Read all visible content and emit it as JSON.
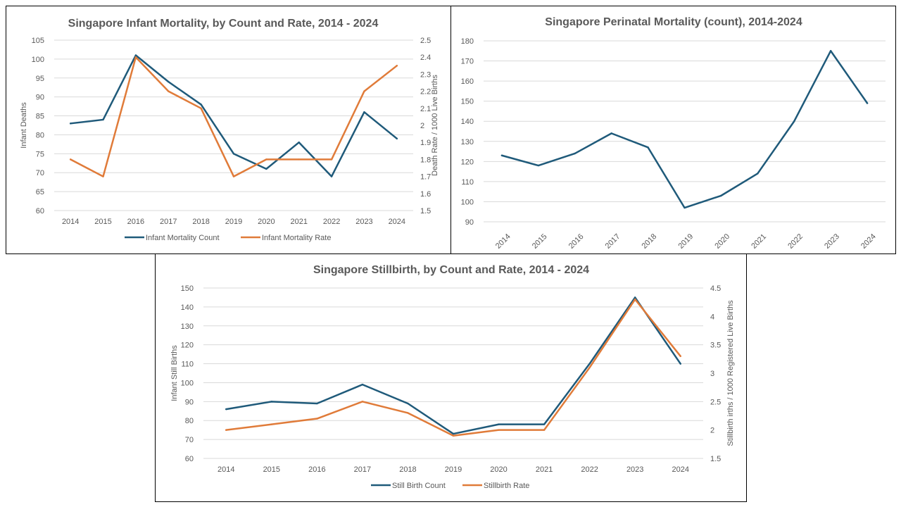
{
  "colors": {
    "count": "#1f5a7a",
    "rate": "#e07b39",
    "grid": "#d9d9d9",
    "text": "#595959"
  },
  "chart_data": [
    {
      "id": "infant",
      "type": "line",
      "title": "Singapore Infant Mortality, by Count and Rate, 2014 - 2024",
      "categories": [
        "2014",
        "2015",
        "2016",
        "2017",
        "2018",
        "2019",
        "2020",
        "2021",
        "2022",
        "2023",
        "2024"
      ],
      "ylabel": "Infant Deaths",
      "y2label": "Death Rate / 1000 Live Births",
      "ylim": [
        60,
        105
      ],
      "yticks": [
        60,
        65,
        70,
        75,
        80,
        85,
        90,
        95,
        100,
        105
      ],
      "y2lim": [
        1.5,
        2.5
      ],
      "y2ticks": [
        "1.5",
        "1.6",
        "1.7",
        "1.8",
        "1.9",
        "2",
        "2.1",
        "2.2",
        "2.3",
        "2.4",
        "2.5"
      ],
      "series": [
        {
          "name": "Infant Mortality Count",
          "axis": "left",
          "color": "#1f5a7a",
          "values": [
            83,
            84,
            101,
            94,
            88,
            75,
            71,
            78,
            69,
            86,
            79
          ]
        },
        {
          "name": "Infant Mortality Rate",
          "axis": "right",
          "color": "#e07b39",
          "values": [
            1.8,
            1.7,
            2.4,
            2.2,
            2.1,
            1.7,
            1.8,
            1.8,
            1.8,
            2.2,
            2.35
          ]
        }
      ],
      "grid": true,
      "legend": "bottom"
    },
    {
      "id": "perinatal",
      "type": "line",
      "title": "Singapore Perinatal Mortality (count), 2014-2024",
      "categories": [
        "2014",
        "2015",
        "2016",
        "2017",
        "2018",
        "2019",
        "2020",
        "2021",
        "2022",
        "2023",
        "2024"
      ],
      "ylim": [
        90,
        180
      ],
      "yticks": [
        90,
        100,
        110,
        120,
        130,
        140,
        150,
        160,
        170,
        180
      ],
      "series": [
        {
          "axis": "left",
          "color": "#1f5a7a",
          "values": [
            123,
            118,
            124,
            134,
            127,
            97,
            103,
            114,
            140,
            175,
            149
          ]
        }
      ],
      "grid": true,
      "xlabels_rotated": true
    },
    {
      "id": "stillbirth",
      "type": "line",
      "title": "Singapore Stillbirth, by Count and Rate, 2014 - 2024",
      "categories": [
        "2014",
        "2015",
        "2016",
        "2017",
        "2018",
        "2019",
        "2020",
        "2021",
        "2022",
        "2023",
        "2024"
      ],
      "ylabel": "Infant Still Births",
      "y2label": "Stillbirth irths / 1000 Registered Live Births",
      "ylim": [
        60,
        150
      ],
      "yticks": [
        60,
        70,
        80,
        90,
        100,
        110,
        120,
        130,
        140,
        150
      ],
      "y2lim": [
        1.5,
        4.5
      ],
      "y2ticks": [
        "1.5",
        "2",
        "2.5",
        "3",
        "3.5",
        "4",
        "4.5"
      ],
      "series": [
        {
          "name": "Still Birth Count",
          "axis": "left",
          "color": "#1f5a7a",
          "values": [
            86,
            90,
            89,
            99,
            89,
            73,
            78,
            78,
            110,
            145,
            110
          ]
        },
        {
          "name": "Stillbirth Rate",
          "axis": "right",
          "color": "#e07b39",
          "values": [
            2.0,
            2.1,
            2.2,
            2.5,
            2.3,
            1.9,
            2.0,
            2.0,
            3.1,
            4.3,
            3.3
          ]
        }
      ],
      "grid": true,
      "legend": "bottom"
    }
  ]
}
